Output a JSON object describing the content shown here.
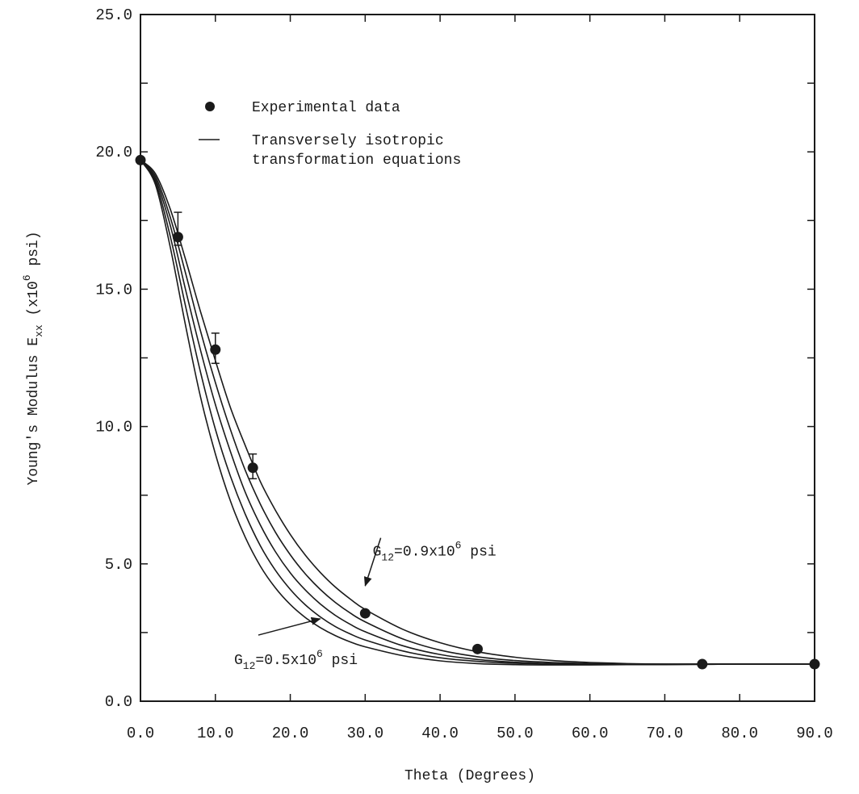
{
  "chart_data": {
    "type": "line",
    "xlabel": "Theta (Degrees)",
    "ylabel": {
      "main": "Young's Modulus E",
      "subscript": "xx",
      "unit_prefix": "(x10",
      "unit_exponent": "6",
      "unit_suffix": " psi)"
    },
    "xlim": [
      0,
      90
    ],
    "ylim": [
      0,
      25
    ],
    "x_ticks": [
      0,
      10,
      20,
      30,
      40,
      50,
      60,
      70,
      80,
      90
    ],
    "x_tick_labels": [
      "0.0",
      "10.0",
      "20.0",
      "30.0",
      "40.0",
      "50.0",
      "60.0",
      "70.0",
      "80.0",
      "90.0"
    ],
    "y_ticks": [
      0,
      5,
      10,
      15,
      20,
      25
    ],
    "y_tick_labels": [
      "0.0",
      "5.0",
      "10.0",
      "15.0",
      "20.0",
      "25.0"
    ],
    "grid": false,
    "legend": {
      "placement": "top-left",
      "entries": [
        {
          "marker": "dot",
          "lines": [
            "Experimental data"
          ]
        },
        {
          "marker": "line",
          "lines": [
            "Transversely isotropic",
            "transformation equations"
          ]
        }
      ]
    },
    "series": [
      {
        "kind": "points",
        "x": [
          0,
          5,
          10,
          15,
          30,
          45,
          75,
          90
        ],
        "y": [
          19.7,
          16.9,
          12.8,
          8.5,
          3.2,
          1.9,
          1.35,
          1.35
        ],
        "error_upper": [
          0,
          0.9,
          0.6,
          0.5,
          0.1,
          0,
          0,
          0
        ],
        "error_lower": [
          0,
          0.3,
          0.5,
          0.4,
          0.1,
          0,
          0,
          0
        ]
      },
      {
        "kind": "curve",
        "G12": 0.9,
        "x": [
          0,
          2,
          4,
          6,
          8,
          10,
          12,
          14,
          16,
          18,
          20,
          22,
          24,
          26,
          28,
          30,
          35,
          40,
          45,
          50,
          55,
          60,
          65,
          70,
          75,
          80,
          90
        ],
        "y": [
          19.7,
          19.2,
          17.9,
          16.1,
          14.2,
          12.4,
          10.7,
          9.3,
          8.0,
          6.96,
          6.07,
          5.32,
          4.69,
          4.16,
          3.72,
          3.34,
          2.62,
          2.13,
          1.8,
          1.6,
          1.48,
          1.41,
          1.37,
          1.35,
          1.35,
          1.35,
          1.35
        ]
      },
      {
        "kind": "curve",
        "G12": 0.8,
        "x": [
          0,
          2,
          4,
          6,
          8,
          10,
          12,
          14,
          16,
          18,
          20,
          22,
          24,
          26,
          28,
          30,
          35,
          40,
          45,
          50,
          55,
          60,
          65,
          70,
          75,
          80,
          90
        ],
        "y": [
          19.7,
          19.1,
          17.6,
          15.6,
          13.5,
          11.6,
          9.9,
          8.4,
          7.18,
          6.16,
          5.33,
          4.64,
          4.07,
          3.6,
          3.21,
          2.89,
          2.27,
          1.86,
          1.62,
          1.48,
          1.41,
          1.37,
          1.35,
          1.35,
          1.35,
          1.35,
          1.35
        ]
      },
      {
        "kind": "curve",
        "G12": 0.7,
        "x": [
          0,
          2,
          4,
          6,
          8,
          10,
          12,
          14,
          16,
          18,
          20,
          22,
          24,
          26,
          28,
          30,
          35,
          40,
          45,
          50,
          55,
          60,
          65,
          70,
          75,
          80,
          90
        ],
        "y": [
          19.7,
          19.0,
          17.3,
          15.0,
          12.8,
          10.8,
          9.1,
          7.6,
          6.42,
          5.45,
          4.67,
          4.05,
          3.54,
          3.13,
          2.8,
          2.53,
          2.02,
          1.7,
          1.52,
          1.42,
          1.37,
          1.35,
          1.35,
          1.35,
          1.35,
          1.35,
          1.35
        ]
      },
      {
        "kind": "curve",
        "G12": 0.6,
        "x": [
          0,
          2,
          4,
          6,
          8,
          10,
          12,
          14,
          16,
          18,
          20,
          22,
          24,
          26,
          28,
          30,
          35,
          40,
          45,
          50,
          55,
          60,
          65,
          70,
          75,
          80,
          90
        ],
        "y": [
          19.7,
          18.9,
          16.9,
          14.4,
          12.0,
          9.9,
          8.2,
          6.8,
          5.66,
          4.77,
          4.07,
          3.51,
          3.07,
          2.72,
          2.45,
          2.23,
          1.83,
          1.58,
          1.45,
          1.38,
          1.35,
          1.34,
          1.34,
          1.34,
          1.35,
          1.35,
          1.35
        ]
      },
      {
        "kind": "curve",
        "G12": 0.5,
        "x": [
          0,
          2,
          4,
          6,
          8,
          10,
          12,
          14,
          16,
          18,
          20,
          22,
          24,
          26,
          28,
          30,
          35,
          40,
          45,
          50,
          55,
          60,
          65,
          70,
          75,
          80,
          90
        ],
        "y": [
          19.7,
          18.8,
          16.5,
          13.7,
          11.1,
          9.0,
          7.3,
          5.96,
          4.92,
          4.13,
          3.52,
          3.05,
          2.68,
          2.39,
          2.16,
          1.98,
          1.66,
          1.47,
          1.37,
          1.33,
          1.32,
          1.32,
          1.33,
          1.33,
          1.34,
          1.35,
          1.35
        ]
      }
    ],
    "annotations": [
      {
        "label_prefix": "G",
        "label_sub": "12",
        "label_mid": "=0.9x10",
        "label_sup": "6",
        "label_suffix": " psi",
        "target": [
          30,
          4.2
        ],
        "text_anchor": [
          31,
          5.3
        ]
      },
      {
        "label_prefix": "G",
        "label_sub": "12",
        "label_mid": "=0.5x10",
        "label_sup": "6",
        "label_suffix": " psi",
        "target": [
          24,
          3.0
        ],
        "text_anchor": [
          12.5,
          1.35
        ]
      }
    ]
  }
}
